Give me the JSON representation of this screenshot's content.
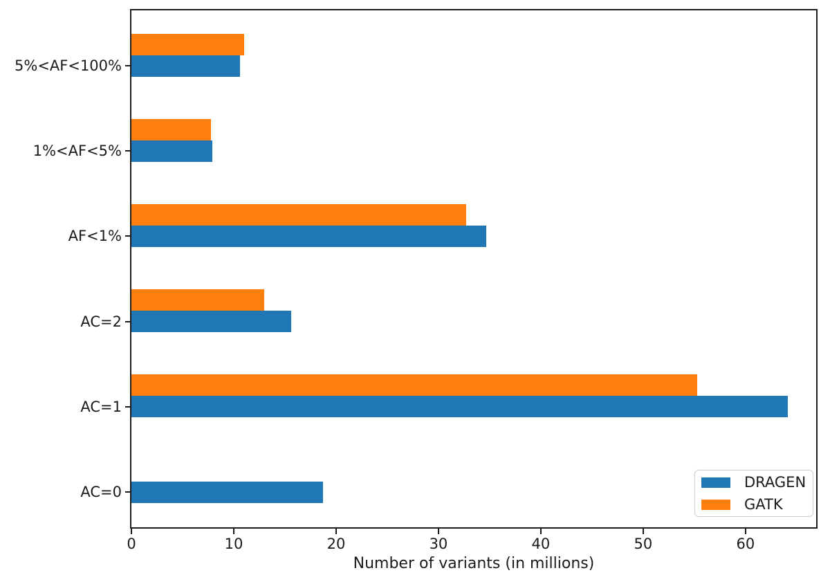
{
  "chart_data": {
    "type": "bar",
    "orientation": "horizontal",
    "title": "",
    "xlabel": "Number of variants (in millions)",
    "ylabel": "",
    "categories": [
      "AC=0",
      "AC=1",
      "AC=2",
      "AF<1%",
      "1%<AF<5%",
      "5%<AF<100%"
    ],
    "series": [
      {
        "name": "DRAGEN",
        "color": "#1f77b4",
        "values": [
          18.7,
          64.1,
          15.6,
          34.7,
          7.9,
          10.6
        ]
      },
      {
        "name": "GATK",
        "color": "#ff7f0e",
        "values": [
          0,
          55.3,
          13.0,
          32.7,
          7.8,
          11.0
        ]
      }
    ],
    "xlim": [
      0,
      66.9
    ],
    "xticks": [
      "0",
      "10",
      "20",
      "30",
      "40",
      "50",
      "60"
    ],
    "grid": false,
    "legend": {
      "position": "lower right",
      "entries": [
        "DRAGEN",
        "GATK"
      ]
    },
    "axis_color": "#1c1c1c",
    "text_color": "#1a1a1a",
    "background_color": "#ffffff"
  }
}
